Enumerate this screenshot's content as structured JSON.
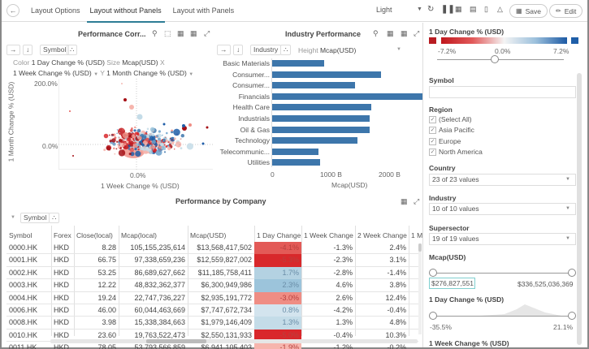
{
  "topbar": {
    "back_icon": "arrow-left-icon",
    "tabs": [
      {
        "label": "Layout Options",
        "active": false
      },
      {
        "label": "Layout without Panels",
        "active": true
      },
      {
        "label": "Layout with Panels",
        "active": false
      }
    ],
    "theme": "Light",
    "icons": [
      "refresh-icon",
      "pause-icon",
      "snapshot-icon",
      "pdf-icon",
      "bookmark-icon",
      "bell-icon"
    ],
    "save_label": "Save",
    "edit_label": "Edit"
  },
  "scatter": {
    "title": "Performance Corr...",
    "group_by": "Symbol",
    "color_label": "Color",
    "color_value": "1 Day Change % (USD)",
    "size_label": "Size",
    "size_value": "Mcap(USD)",
    "x_label": "X",
    "x_value": "1 Week Change % (USD)",
    "y_label": "Y",
    "y_value": "1 Month Change % (USD)"
  },
  "bars": {
    "title": "Industry Performance",
    "group_by": "Industry",
    "height_label": "Height",
    "height_value": "Mcap(USD)"
  },
  "chart_data": [
    {
      "type": "scatter",
      "title": "Performance Corr...",
      "xlabel": "1 Week Change % (USD)",
      "ylabel": "1 Month Change % (USD)",
      "x_ticks": [
        "0.0%"
      ],
      "y_ticks": [
        "200.0%",
        "0.0%"
      ],
      "xlim": [
        -60,
        55
      ],
      "ylim": [
        -90,
        210
      ],
      "note": "Dense cluster of bubbles around origin, colored by 1 Day Change (red negative, blue positive), sized by Mcap"
    },
    {
      "type": "bar",
      "orientation": "horizontal",
      "title": "Industry Performance",
      "xlabel": "Mcap(USD)",
      "categories": [
        "Basic Materials",
        "Consumer...",
        "Consumer...",
        "Financials",
        "Health Care",
        "Industrials",
        "Oil & Gas",
        "Technology",
        "Telecommunic...",
        "Utilities"
      ],
      "values": [
        900,
        1880,
        1420,
        2590,
        1710,
        1680,
        1680,
        1470,
        800,
        820
      ],
      "x_ticks": [
        "0",
        "1000 B",
        "2000 B"
      ],
      "xlim": [
        0,
        2600
      ],
      "unit": "B"
    }
  ],
  "table": {
    "title": "Performance by Company",
    "group_by": "Symbol",
    "columns": [
      "Symbol",
      "Forex",
      "Close(local)",
      "Mcap(local)",
      "Mcap(USD)",
      "1 Day Change",
      "1 Week Change",
      "2 Week Change",
      "1 M"
    ],
    "rows": [
      [
        "0000.HK",
        "HKD",
        "8.28",
        "105,155,235,614",
        "$13,568,417,502",
        "-4.1%",
        "-1.3%",
        "2.4%"
      ],
      [
        "0001.HK",
        "HKD",
        "66.75",
        "97,338,659,236",
        "$12,559,827,002",
        "-5.3%",
        "-2.3%",
        "3.1%"
      ],
      [
        "0002.HK",
        "HKD",
        "53.25",
        "86,689,627,662",
        "$11,185,758,411",
        "1.7%",
        "-2.8%",
        "-1.4%"
      ],
      [
        "0003.HK",
        "HKD",
        "12.22",
        "48,832,362,377",
        "$6,300,949,986",
        "2.3%",
        "4.6%",
        "3.8%"
      ],
      [
        "0004.HK",
        "HKD",
        "19.24",
        "22,747,736,227",
        "$2,935,191,772",
        "-3.0%",
        "2.6%",
        "12.4%"
      ],
      [
        "0006.HK",
        "HKD",
        "46.00",
        "60,044,463,669",
        "$7,747,672,734",
        "0.8%",
        "-4.2%",
        "-0.4%"
      ],
      [
        "0008.HK",
        "HKD",
        "3.98",
        "15,338,384,663",
        "$1,979,146,409",
        "1.3%",
        "1.3%",
        "4.8%"
      ],
      [
        "0010.HK",
        "HKD",
        "23.60",
        "19,763,522,473",
        "$2,550,131,933",
        "-5.0%",
        "-0.4%",
        "10.3%"
      ],
      [
        "0011.HK",
        "HKD",
        "78.05",
        "53,793,566,859",
        "$6,941,105,403",
        "-1.9%",
        "-1.2%",
        "-0.2%"
      ]
    ],
    "day_change_colors": [
      "#e35a57",
      "#d8282b",
      "#b4d2e2",
      "#9cc4db",
      "#ef8d84",
      "#d3e4ee",
      "#c4dce8",
      "#d9272b",
      "#f6b5ad"
    ]
  },
  "filters": {
    "color_legend": {
      "title": "1 Day Change % (USD)",
      "min": "-7.2%",
      "mid": "0.0%",
      "max": "7.2%",
      "neg_color": "#b81c22",
      "pos_color": "#1f5ea8",
      "slider_position": 0.5
    },
    "symbol": {
      "label": "Symbol",
      "value": ""
    },
    "region": {
      "label": "Region",
      "options": [
        {
          "label": "(Select All)",
          "checked": true
        },
        {
          "label": "Asia Pacific",
          "checked": true
        },
        {
          "label": "Europe",
          "checked": true
        },
        {
          "label": "North America",
          "checked": true
        }
      ]
    },
    "country": {
      "label": "Country",
      "value": "23 of 23 values"
    },
    "industry": {
      "label": "Industry",
      "value": "10 of 10 values"
    },
    "supersector": {
      "label": "Supersector",
      "value": "19 of 19 values"
    },
    "mcap": {
      "label": "Mcap(USD)",
      "min": "$276,827,551",
      "max": "$336,525,036,369"
    },
    "day_change": {
      "label": "1 Day Change % (USD)",
      "min": "-35.5%",
      "max": "21.1%"
    },
    "week_change": {
      "label": "1 Week Change % (USD)"
    }
  }
}
